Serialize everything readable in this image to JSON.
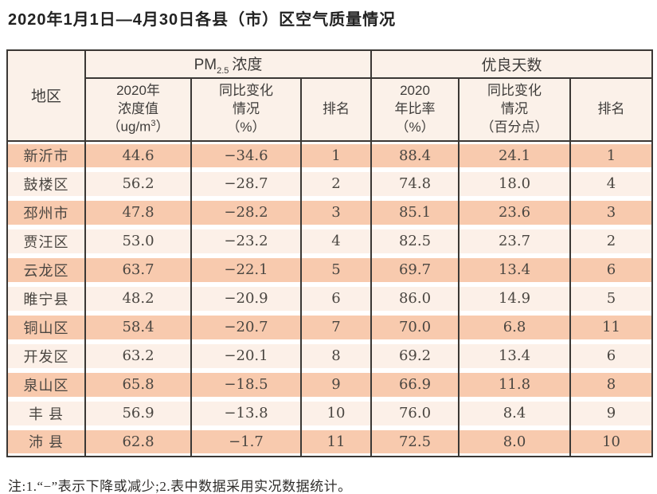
{
  "page": {
    "title": "2020年1月1日—4月30日各县（市）区空气质量情况",
    "note": "注:1.“−”表示下降或减少;2.表中数据采用实况数据统计。"
  },
  "table": {
    "corner_header": "地区",
    "groups": {
      "pm": {
        "prefix": "PM",
        "subscript": "2.5",
        "suffix": "浓度"
      },
      "days": {
        "label": "优良天数"
      }
    },
    "columns": {
      "pm_value": {
        "l1": "2020年",
        "l2": "浓度值",
        "l3_pre": "（ug/m",
        "l3_sup": "3",
        "l3_post": "）"
      },
      "pm_change": {
        "l1": "同比变化",
        "l2": "情况",
        "l3": "（%）"
      },
      "pm_rank": {
        "label": "排名"
      },
      "days_rate": {
        "l1": "2020",
        "l2": "年比率",
        "l3": "（%）"
      },
      "days_change": {
        "l1": "同比变化",
        "l2": "情况",
        "l3": "（百分点）"
      },
      "days_rank": {
        "label": "排名"
      }
    },
    "rows": [
      {
        "region": "新沂市",
        "pm_value": "44.6",
        "pm_change": "−34.6",
        "pm_rank": "1",
        "days_rate": "88.4",
        "days_change": "24.1",
        "days_rank": "1"
      },
      {
        "region": "鼓楼区",
        "pm_value": "56.2",
        "pm_change": "−28.7",
        "pm_rank": "2",
        "days_rate": "74.8",
        "days_change": "18.0",
        "days_rank": "4"
      },
      {
        "region": "邳州市",
        "pm_value": "47.8",
        "pm_change": "−28.2",
        "pm_rank": "3",
        "days_rate": "85.1",
        "days_change": "23.6",
        "days_rank": "3"
      },
      {
        "region": "贾汪区",
        "pm_value": "53.0",
        "pm_change": "−23.2",
        "pm_rank": "4",
        "days_rate": "82.5",
        "days_change": "23.7",
        "days_rank": "2"
      },
      {
        "region": "云龙区",
        "pm_value": "63.7",
        "pm_change": "−22.1",
        "pm_rank": "5",
        "days_rate": "69.7",
        "days_change": "13.4",
        "days_rank": "6"
      },
      {
        "region": "睢宁县",
        "pm_value": "48.2",
        "pm_change": "−20.9",
        "pm_rank": "6",
        "days_rate": "86.0",
        "days_change": "14.9",
        "days_rank": "5"
      },
      {
        "region": "铜山区",
        "pm_value": "58.4",
        "pm_change": "−20.7",
        "pm_rank": "7",
        "days_rate": "70.0",
        "days_change": "6.8",
        "days_rank": "11"
      },
      {
        "region": "开发区",
        "pm_value": "63.2",
        "pm_change": "−20.1",
        "pm_rank": "8",
        "days_rate": "69.2",
        "days_change": "13.4",
        "days_rank": "6"
      },
      {
        "region": "泉山区",
        "pm_value": "65.8",
        "pm_change": "−18.5",
        "pm_rank": "9",
        "days_rate": "66.9",
        "days_change": "11.8",
        "days_rank": "8"
      },
      {
        "region": "丰 县",
        "pm_value": "56.9",
        "pm_change": "−13.8",
        "pm_rank": "10",
        "days_rate": "76.0",
        "days_change": "8.4",
        "days_rank": "9"
      },
      {
        "region": "沛 县",
        "pm_value": "62.8",
        "pm_change": "−1.7",
        "pm_rank": "11",
        "days_rate": "72.5",
        "days_change": "8.0",
        "days_rank": "10"
      }
    ]
  },
  "colors": {
    "border": "#3b3835",
    "row_salmon": "#f8caae",
    "row_light": "#fcf0e8",
    "header_bg": "#fbf1e9"
  }
}
